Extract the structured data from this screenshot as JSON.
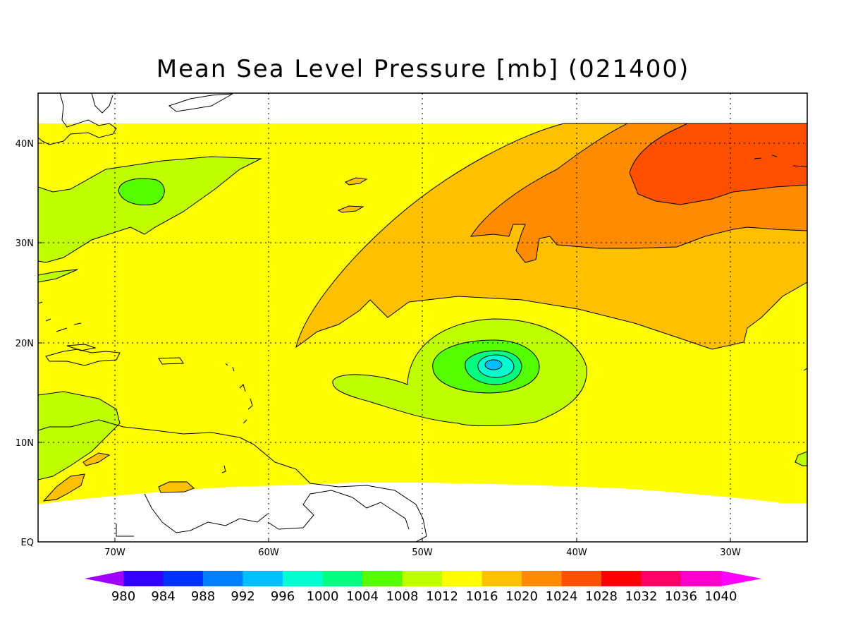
{
  "title": "Mean Sea Level Pressure [mb] (021400)",
  "map": {
    "lon_range": [
      -75,
      -25
    ],
    "lat_range": [
      0,
      45
    ],
    "lat_ticks": [
      "40N",
      "30N",
      "20N",
      "10N",
      "EQ"
    ],
    "lon_ticks": [
      "70W",
      "60W",
      "50W",
      "40W",
      "30W"
    ],
    "grid": "dotted"
  },
  "colorbar": {
    "levels": [
      "980",
      "984",
      "988",
      "992",
      "996",
      "1000",
      "1004",
      "1008",
      "1012",
      "1016",
      "1020",
      "1024",
      "1028",
      "1032",
      "1036",
      "1040"
    ],
    "colors": [
      "#a000ff",
      "#3300ff",
      "#0033ff",
      "#0080ff",
      "#00bfff",
      "#00ffd0",
      "#00ff80",
      "#55ff00",
      "#c0ff00",
      "#ffff00",
      "#ffc000",
      "#ff8c00",
      "#ff5000",
      "#ff0000",
      "#ff0066",
      "#ff00cc",
      "#ff00ff"
    ]
  },
  "features": {
    "storm_center": "low-pressure-center",
    "high_pressure": "high-pressure-ridge"
  }
}
